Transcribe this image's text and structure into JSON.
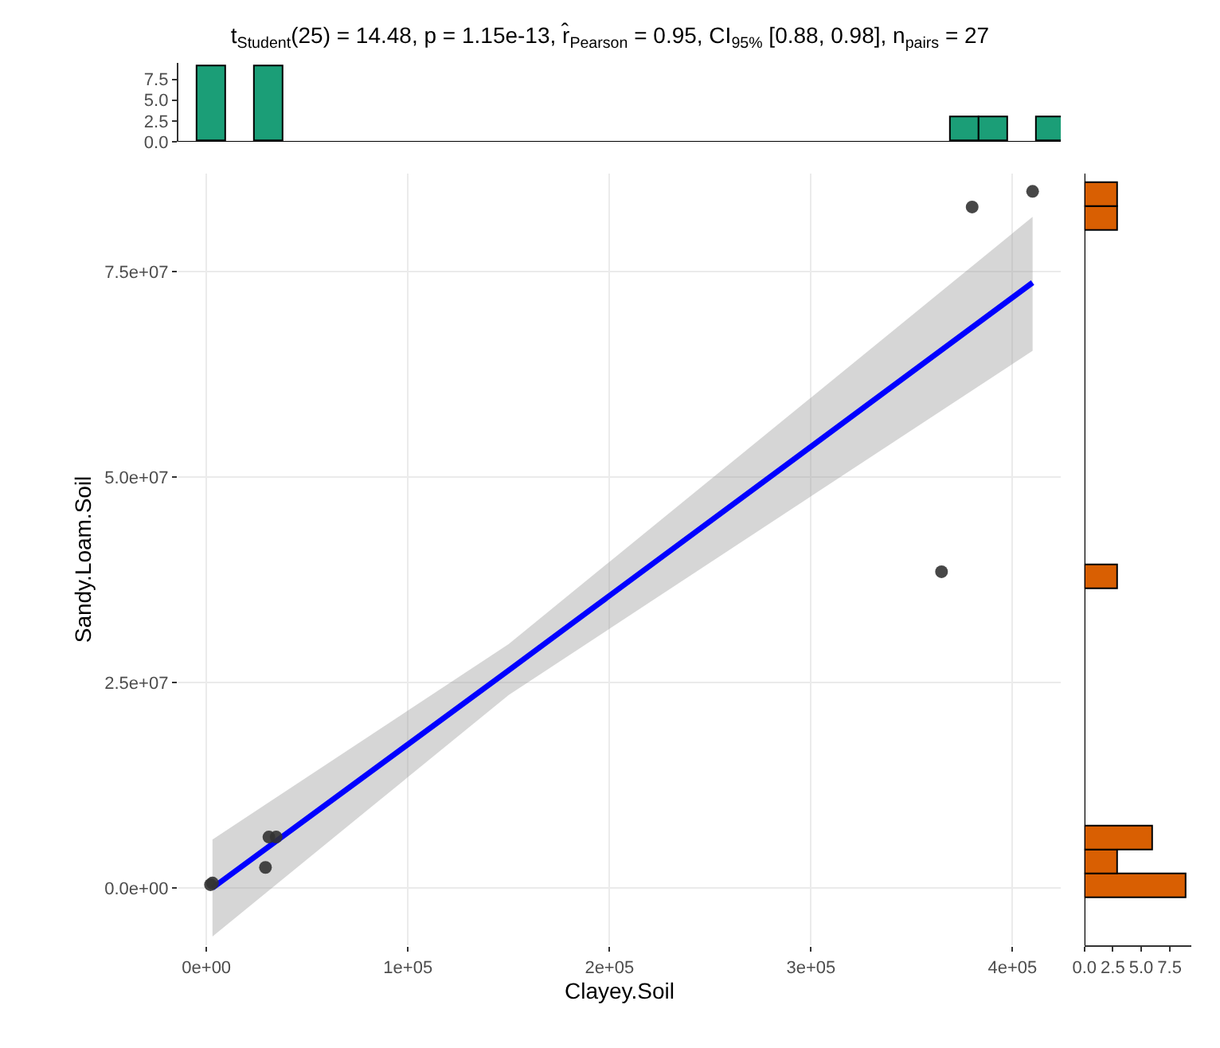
{
  "chart_data": [
    {
      "type": "scatter",
      "title": "t$_{Student}$(25) = 14.48, p = 1.15e-13, r̂$_{Pearson}$ = 0.95, CI$_{95%}$ [0.88, 0.98], n$_{pairs}$ = 27",
      "xlabel": "Clayey.Soil",
      "ylabel": "Sandy.Loam.Soil",
      "xlim": [
        -14000,
        424000
      ],
      "ylim": [
        -7000000,
        87000000
      ],
      "xticks": [
        {
          "value": 0,
          "label": "0e+00"
        },
        {
          "value": 100000,
          "label": "1e+05"
        },
        {
          "value": 200000,
          "label": "2e+05"
        },
        {
          "value": 300000,
          "label": "3e+05"
        },
        {
          "value": 400000,
          "label": "4e+05"
        }
      ],
      "yticks": [
        {
          "value": 0,
          "label": "0.0e+00"
        },
        {
          "value": 25000000,
          "label": "2.5e+07"
        },
        {
          "value": 50000000,
          "label": "5.0e+07"
        },
        {
          "value": 75000000,
          "label": "7.5e+07"
        }
      ],
      "grid": true,
      "series": [
        {
          "type": "line",
          "color": "#0000ff",
          "x": [
            3000,
            150000,
            410000
          ],
          "values": [
            0,
            26500000,
            73700000
          ],
          "lower": [
            -5900000,
            23500000,
            65400000
          ],
          "upper": [
            5900000,
            29700000,
            81700000
          ]
        },
        {
          "type": "scatter",
          "color": "#333333",
          "marker": "circle",
          "x": [
            2000,
            3000,
            29300,
            31000,
            34600,
            364800,
            380000,
            410000
          ],
          "values": [
            400000,
            600000,
            2500000,
            6200000,
            6200000,
            38500000,
            82900000,
            84800000
          ]
        }
      ]
    },
    {
      "type": "histogram",
      "color": "#1b9e77",
      "xlim": [
        -14000,
        424000
      ],
      "ylim": [
        0,
        9.45
      ],
      "yticks": [
        {
          "value": 0,
          "label": "0.0"
        },
        {
          "value": 2.5,
          "label": "2.5"
        },
        {
          "value": 5,
          "label": "5.0"
        },
        {
          "value": 7.5,
          "label": "7.5"
        }
      ],
      "tick_labels": "y",
      "bins": [
        -4770,
        9612,
        23994,
        38376,
        52758,
        67140,
        81522,
        95904,
        110286,
        124668,
        139050,
        153432,
        167814,
        182196,
        196578,
        210960,
        225342,
        239724,
        254106,
        268488,
        282870,
        297252,
        311634,
        326016,
        340398,
        354780,
        369162,
        383544,
        397926,
        412308,
        426690
      ],
      "values": [
        9,
        0,
        9,
        0,
        0,
        0,
        0,
        0,
        0,
        0,
        0,
        0,
        0,
        0,
        0,
        0,
        0,
        0,
        0,
        0,
        0,
        0,
        0,
        0,
        0,
        0,
        3,
        3,
        0,
        3
      ]
    },
    {
      "type": "histogram",
      "orientation": "horizontal",
      "color": "#d95f02",
      "xlim": [
        0,
        9.45
      ],
      "ylim": [
        -7000000,
        87000000
      ],
      "xticks": [
        {
          "value": 0,
          "label": "0.0"
        },
        {
          "value": 2.5,
          "label": "2.5"
        },
        {
          "value": 5,
          "label": "5.0"
        },
        {
          "value": 7.5,
          "label": "7.5"
        }
      ],
      "tick_labels": "x",
      "bins": [
        -1290000,
        1613000,
        4516000,
        7419000,
        10322000,
        13225000,
        16128000,
        19031000,
        21934000,
        24837000,
        27740000,
        30643000,
        33546000,
        36449000,
        39352000,
        42255000,
        45158000,
        48061000,
        50964000,
        53867000,
        56770000,
        59673000,
        62576000,
        65479000,
        68382000,
        71285000,
        74188000,
        77091000,
        79994000,
        82897000,
        85800000
      ],
      "values": [
        9,
        3,
        6,
        0,
        0,
        0,
        0,
        0,
        0,
        0,
        0,
        0,
        0,
        3,
        0,
        0,
        0,
        0,
        0,
        0,
        0,
        0,
        0,
        0,
        0,
        0,
        0,
        0,
        3,
        3
      ]
    }
  ]
}
